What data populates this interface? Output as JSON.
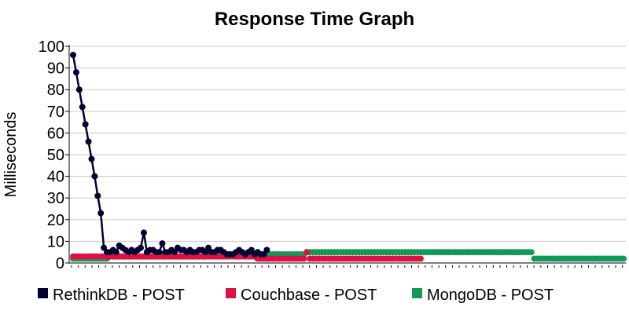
{
  "chart_data": {
    "type": "line",
    "title": "Response Time Graph",
    "xlabel": "",
    "ylabel": "Milliseconds",
    "ylim": [
      0,
      100
    ],
    "yticks": [
      0,
      10,
      20,
      30,
      40,
      50,
      60,
      70,
      80,
      90,
      100
    ],
    "grid": true,
    "legend_position": "bottom",
    "series": [
      {
        "name": "RethinkDB - POST",
        "color": "#000033",
        "marker": "circle",
        "line": true,
        "values": [
          96,
          88,
          80,
          72,
          64,
          56,
          48,
          40,
          31,
          23,
          7,
          5,
          5,
          6,
          5,
          8,
          7,
          6,
          5,
          6,
          5,
          6,
          7,
          14,
          5,
          6,
          6,
          5,
          5,
          9,
          5,
          5,
          6,
          5,
          7,
          6,
          6,
          5,
          6,
          5,
          5,
          6,
          6,
          5,
          7,
          5,
          5,
          6,
          6,
          5,
          4,
          4,
          4,
          5,
          6,
          5,
          4,
          5,
          6,
          4,
          5,
          4,
          4,
          6
        ]
      },
      {
        "name": "Couchbase - POST",
        "color": "#dd1144",
        "marker": "circle",
        "line": false,
        "values": [
          3,
          3,
          3,
          3,
          3,
          3,
          3,
          3,
          3,
          3,
          3,
          3,
          3,
          3,
          3,
          3,
          3,
          3,
          3,
          3,
          3,
          3,
          3,
          3,
          3,
          3,
          3,
          3,
          3,
          3,
          3,
          3,
          3,
          3,
          3,
          3,
          3,
          3,
          3,
          3,
          3,
          3,
          3,
          3,
          3,
          3,
          3,
          3,
          3,
          3,
          3,
          3,
          3,
          3,
          3,
          3,
          3,
          3,
          3,
          3,
          2,
          2,
          2,
          2,
          2,
          2,
          2,
          2,
          2,
          2,
          2,
          2,
          2,
          2,
          2,
          2,
          5,
          2,
          2,
          2,
          2,
          2,
          2,
          2,
          2,
          2,
          2,
          2,
          2,
          2,
          2,
          2,
          2,
          2,
          2,
          2,
          2,
          2,
          2,
          2,
          2,
          2,
          2,
          2,
          2,
          2,
          2,
          2,
          2,
          2,
          2,
          2,
          2,
          2
        ]
      },
      {
        "name": "MongoDB - POST",
        "color": "#119955",
        "marker": "circle",
        "line": false,
        "values": [
          2,
          2,
          2,
          2,
          2,
          2,
          2,
          2,
          2,
          2,
          2,
          2,
          3,
          3,
          3,
          3,
          3,
          3,
          3,
          3,
          3,
          3,
          3,
          3,
          3,
          3,
          3,
          3,
          3,
          3,
          3,
          3,
          3,
          3,
          3,
          3,
          3,
          3,
          3,
          3,
          3,
          3,
          3,
          3,
          4,
          4,
          4,
          4,
          4,
          4,
          4,
          4,
          4,
          4,
          4,
          4,
          4,
          4,
          4,
          4,
          4,
          4,
          4,
          4,
          4,
          4,
          4,
          4,
          4,
          4,
          4,
          4,
          4,
          4,
          4,
          4,
          5,
          5,
          5,
          5,
          5,
          5,
          5,
          5,
          5,
          5,
          5,
          5,
          5,
          5,
          5,
          5,
          5,
          5,
          5,
          5,
          5,
          5,
          5,
          5,
          5,
          5,
          5,
          5,
          5,
          5,
          5,
          5,
          5,
          5,
          5,
          5,
          5,
          5,
          5,
          5,
          5,
          5,
          5,
          5,
          5,
          5,
          5,
          5,
          5,
          5,
          5,
          5,
          5,
          5,
          5,
          5,
          5,
          5,
          5,
          5,
          5,
          5,
          5,
          5,
          5,
          5,
          5,
          5,
          5,
          5,
          5,
          5,
          5,
          5,
          2,
          2,
          2,
          2,
          2,
          2,
          2,
          2,
          2,
          2,
          2,
          2,
          2,
          2,
          2,
          2,
          2,
          2,
          2,
          2,
          2,
          2,
          2,
          2,
          2,
          2,
          2,
          2,
          2,
          2
        ]
      }
    ]
  }
}
